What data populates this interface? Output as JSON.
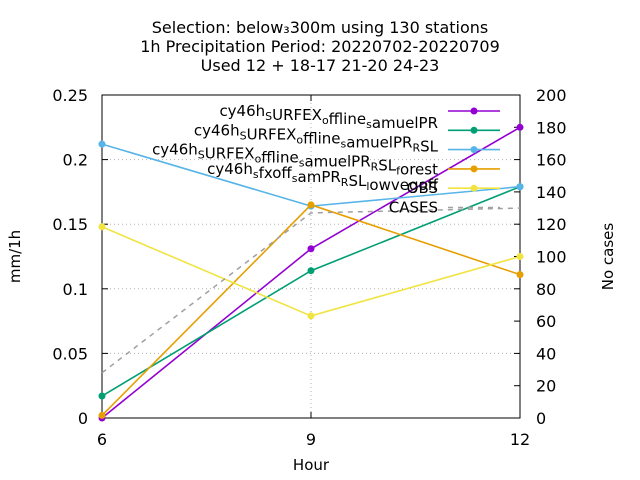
{
  "chart_data": {
    "type": "line",
    "title_lines": [
      "Selection: below₃300m using   130 stations",
      "1h Precipitation   Period: 20220702-20220709",
      "Used  12 + 18-17 21-20 24-23"
    ],
    "xlabel": "Hour",
    "ylabel": "mm/1h",
    "y2label": "No cases",
    "x": [
      6,
      9,
      12
    ],
    "xticks": [
      "6",
      "9",
      "12"
    ],
    "xlim": [
      6,
      12
    ],
    "ylim": [
      0,
      0.25
    ],
    "yticks": [
      "0",
      "0.05",
      "0.1",
      "0.15",
      "0.2",
      "0.25"
    ],
    "y2lim": [
      0,
      200
    ],
    "y2ticks": [
      "0",
      "20",
      "40",
      "60",
      "80",
      "100",
      "120",
      "140",
      "160",
      "180",
      "200"
    ],
    "grid": true,
    "legend_position": "top-right",
    "series": [
      {
        "name": "cy46h_SURFEX_offline_samuelPR",
        "color": "#9400d3",
        "values": [
          0.0,
          0.131,
          0.225
        ],
        "marker": true
      },
      {
        "name": "cy46h_SURFEX_offline_samuelPR_RSL",
        "color": "#009e73",
        "values": [
          0.017,
          0.114,
          0.179
        ],
        "marker": true
      },
      {
        "name": "cy46h_SURFEX_offline_samuelPR_RSL_forest",
        "color": "#56b4e9",
        "values": [
          0.212,
          0.164,
          0.179
        ],
        "marker": true
      },
      {
        "name": "cy46h_sfxoff_samPR_RSL_lowvegoff",
        "color": "#e69f00",
        "values": [
          0.002,
          0.165,
          0.111
        ],
        "marker": true
      },
      {
        "name": "OBS",
        "color": "#f0e442",
        "values": [
          0.148,
          0.079,
          0.125
        ],
        "marker": true
      },
      {
        "name": "CASES",
        "color": "#a0a0a0",
        "axis": "y2",
        "values": [
          28,
          127,
          130
        ],
        "marker": false,
        "dashed": true
      }
    ]
  }
}
